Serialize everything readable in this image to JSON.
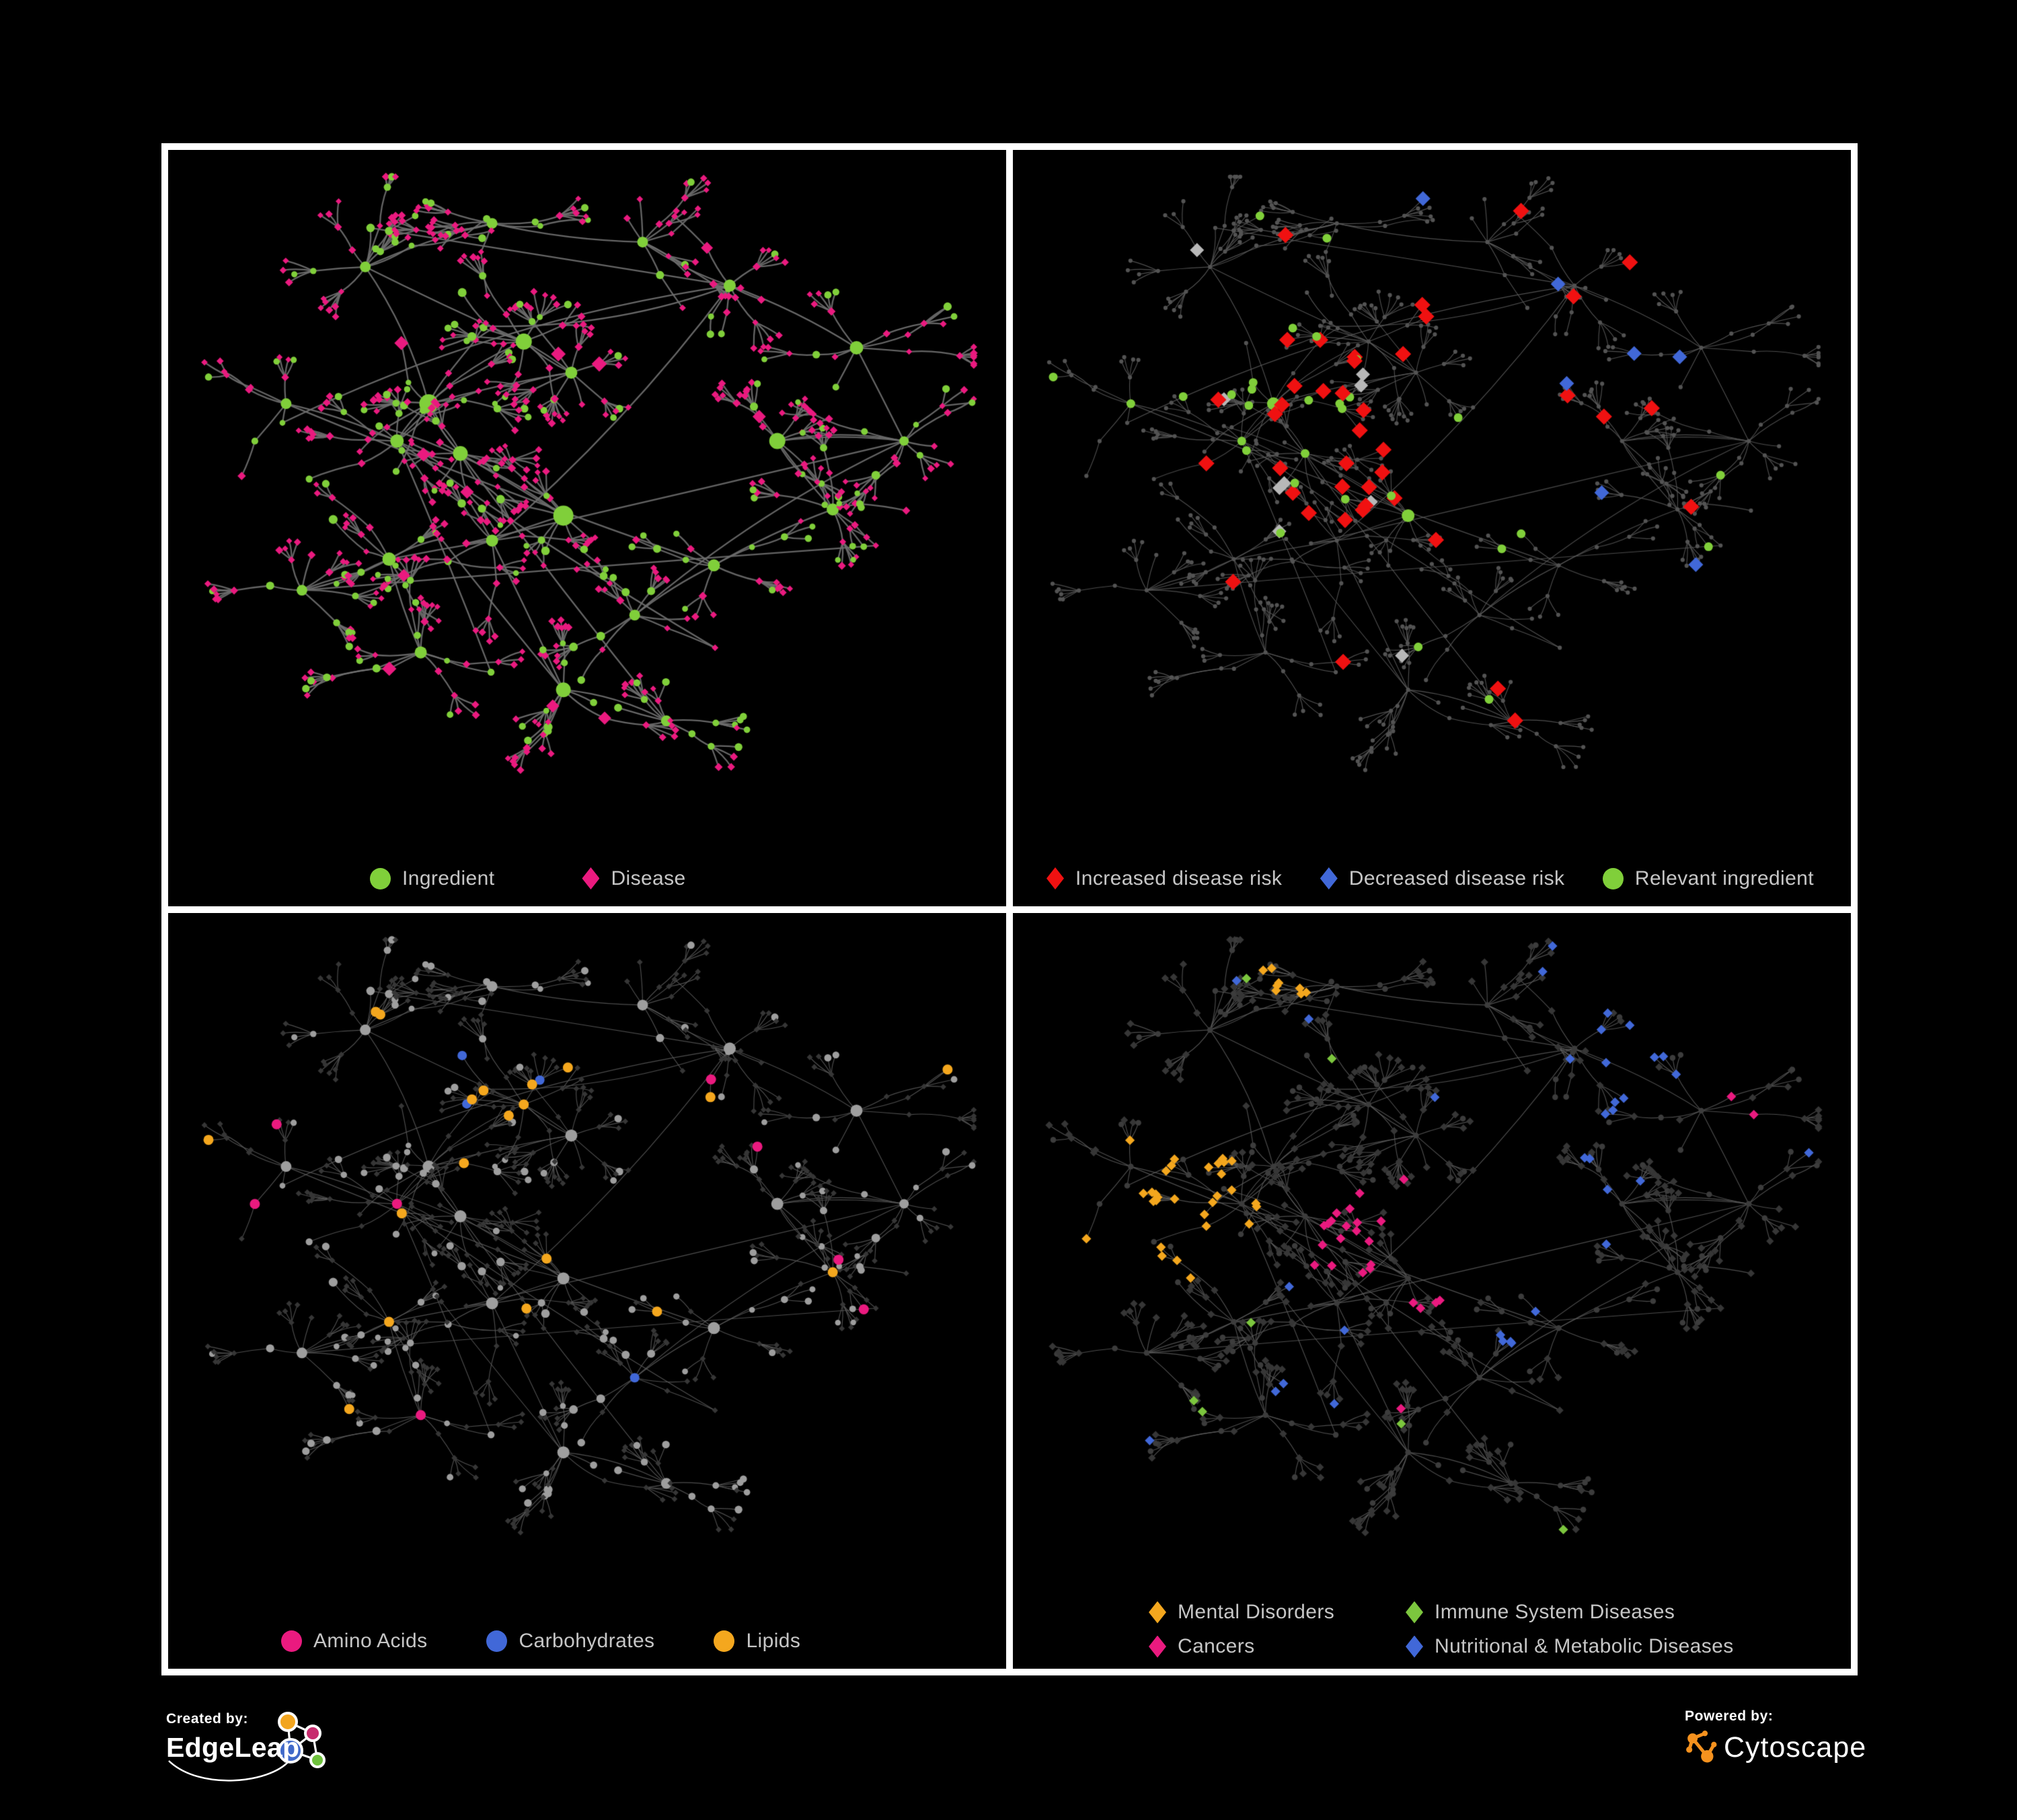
{
  "page": {
    "background": "#000000",
    "border_color": "#ffffff"
  },
  "panels": [
    {
      "id": "ingredient-disease",
      "legend": [
        {
          "label": "Ingredient",
          "shape": "circle",
          "color": "#80cf3a"
        },
        {
          "label": "Disease",
          "shape": "diamond",
          "color": "#ea1a7f"
        }
      ]
    },
    {
      "id": "disease-risk",
      "legend": [
        {
          "label": "Increased disease risk",
          "shape": "diamond",
          "color": "#f01111"
        },
        {
          "label": "Decreased disease risk",
          "shape": "diamond",
          "color": "#4168d8"
        },
        {
          "label": "Relevant ingredient",
          "shape": "circle",
          "color": "#80cf3a"
        }
      ]
    },
    {
      "id": "nutrient-categories",
      "legend": [
        {
          "label": "Amino Acids",
          "shape": "circle",
          "color": "#ea1a7f"
        },
        {
          "label": "Carbohydrates",
          "shape": "circle",
          "color": "#4168d8"
        },
        {
          "label": "Lipids",
          "shape": "circle",
          "color": "#f4a71e"
        }
      ]
    },
    {
      "id": "disease-categories",
      "legend": [
        {
          "label": "Mental Disorders",
          "shape": "diamond",
          "color": "#f4a71e"
        },
        {
          "label": "Immune System Diseases",
          "shape": "diamond",
          "color": "#7cc63e"
        },
        {
          "label": "Cancers",
          "shape": "diamond",
          "color": "#ea1a7f"
        },
        {
          "label": "Nutritional & Metabolic Diseases",
          "shape": "diamond",
          "color": "#4168d8"
        }
      ]
    }
  ],
  "footer": {
    "created_by": {
      "label": "Created by:",
      "brand": "EdgeLeap",
      "mark_colors": {
        "node1": "#f2a51f",
        "node2": "#c72c6e",
        "node3": "#4069c9",
        "node4": "#6ec13c",
        "lines": "#ffffff"
      }
    },
    "powered_by": {
      "label": "Powered by:",
      "brand": "Cytoscape",
      "mark_color": "#f6921e"
    }
  },
  "network": {
    "seed": 7,
    "hubs": [
      [
        0.3,
        0.38,
        14
      ],
      [
        0.34,
        0.46,
        11
      ],
      [
        0.26,
        0.44,
        10
      ],
      [
        0.42,
        0.28,
        12
      ],
      [
        0.48,
        0.33,
        9
      ],
      [
        0.47,
        0.56,
        15
      ],
      [
        0.38,
        0.6,
        9
      ],
      [
        0.25,
        0.63,
        10
      ],
      [
        0.12,
        0.38,
        8
      ],
      [
        0.22,
        0.16,
        8
      ],
      [
        0.38,
        0.09,
        8
      ],
      [
        0.57,
        0.12,
        8
      ],
      [
        0.68,
        0.19,
        9
      ],
      [
        0.84,
        0.29,
        10
      ],
      [
        0.9,
        0.44,
        7
      ],
      [
        0.74,
        0.44,
        12
      ],
      [
        0.81,
        0.55,
        9
      ],
      [
        0.66,
        0.64,
        9
      ],
      [
        0.47,
        0.84,
        11
      ],
      [
        0.29,
        0.78,
        9
      ],
      [
        0.6,
        0.89,
        8
      ],
      [
        0.56,
        0.72,
        8
      ],
      [
        0.14,
        0.68,
        8
      ]
    ],
    "palette": {
      "ingredient": "#80cf3a",
      "disease": "#ea1a7f",
      "risk_increased": "#f01111",
      "risk_decreased": "#4168d8",
      "risk_neutral": "#b8b8b8",
      "relevant_ingredient": "#80cf3a",
      "base_dot": "#535353",
      "amino_acids": "#ea1a7f",
      "carbohydrates": "#4168d8",
      "lipids": "#f4a71e",
      "ingredient_gray": "#9e9e9e",
      "diamond_dark": "#363636",
      "node_dark": "#3c3c3c",
      "mental": "#f4a71e",
      "immune": "#7cc63e",
      "cancer": "#ea1a7f",
      "nutritional": "#4168d8",
      "edge_bright": "#6e6e6e",
      "edge_dim": "#5c5c5c"
    }
  }
}
